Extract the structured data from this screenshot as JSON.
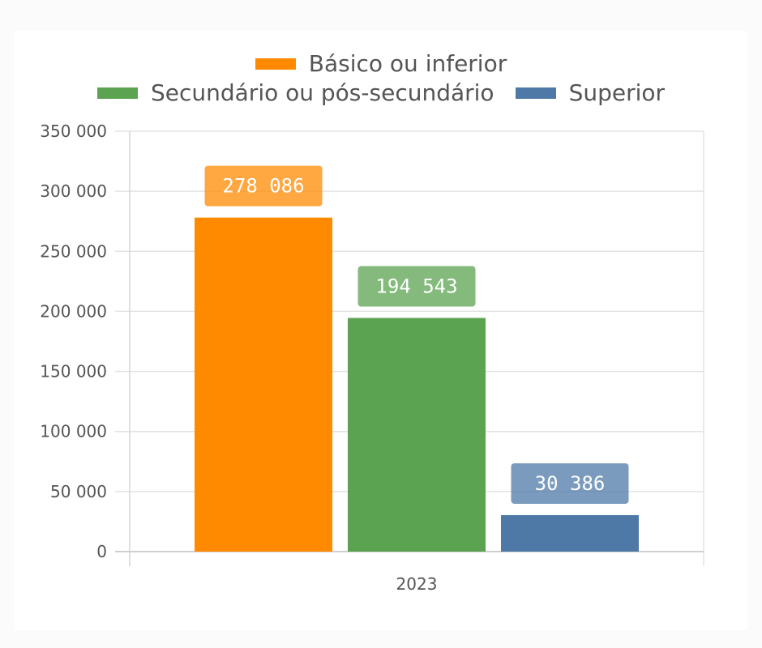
{
  "chart_data": {
    "type": "bar",
    "categories": [
      "2023"
    ],
    "series": [
      {
        "name": "Básico ou inferior",
        "values": [
          278086
        ],
        "label": "278 086",
        "color": "#ff8a00"
      },
      {
        "name": "Secundário ou pós-secundário",
        "values": [
          194543
        ],
        "label": "194 543",
        "color": "#5ba350"
      },
      {
        "name": "Superior",
        "values": [
          30386
        ],
        "label": "30 386",
        "color": "#4e79a7"
      }
    ],
    "ylim": [
      0,
      350000
    ],
    "yticks": [
      0,
      50000,
      100000,
      150000,
      200000,
      250000,
      300000,
      350000
    ],
    "ytick_labels": [
      "0",
      "50 000",
      "100 000",
      "150 000",
      "200 000",
      "250 000",
      "300 000",
      "350 000"
    ],
    "grid": true,
    "legend_position": "top"
  }
}
